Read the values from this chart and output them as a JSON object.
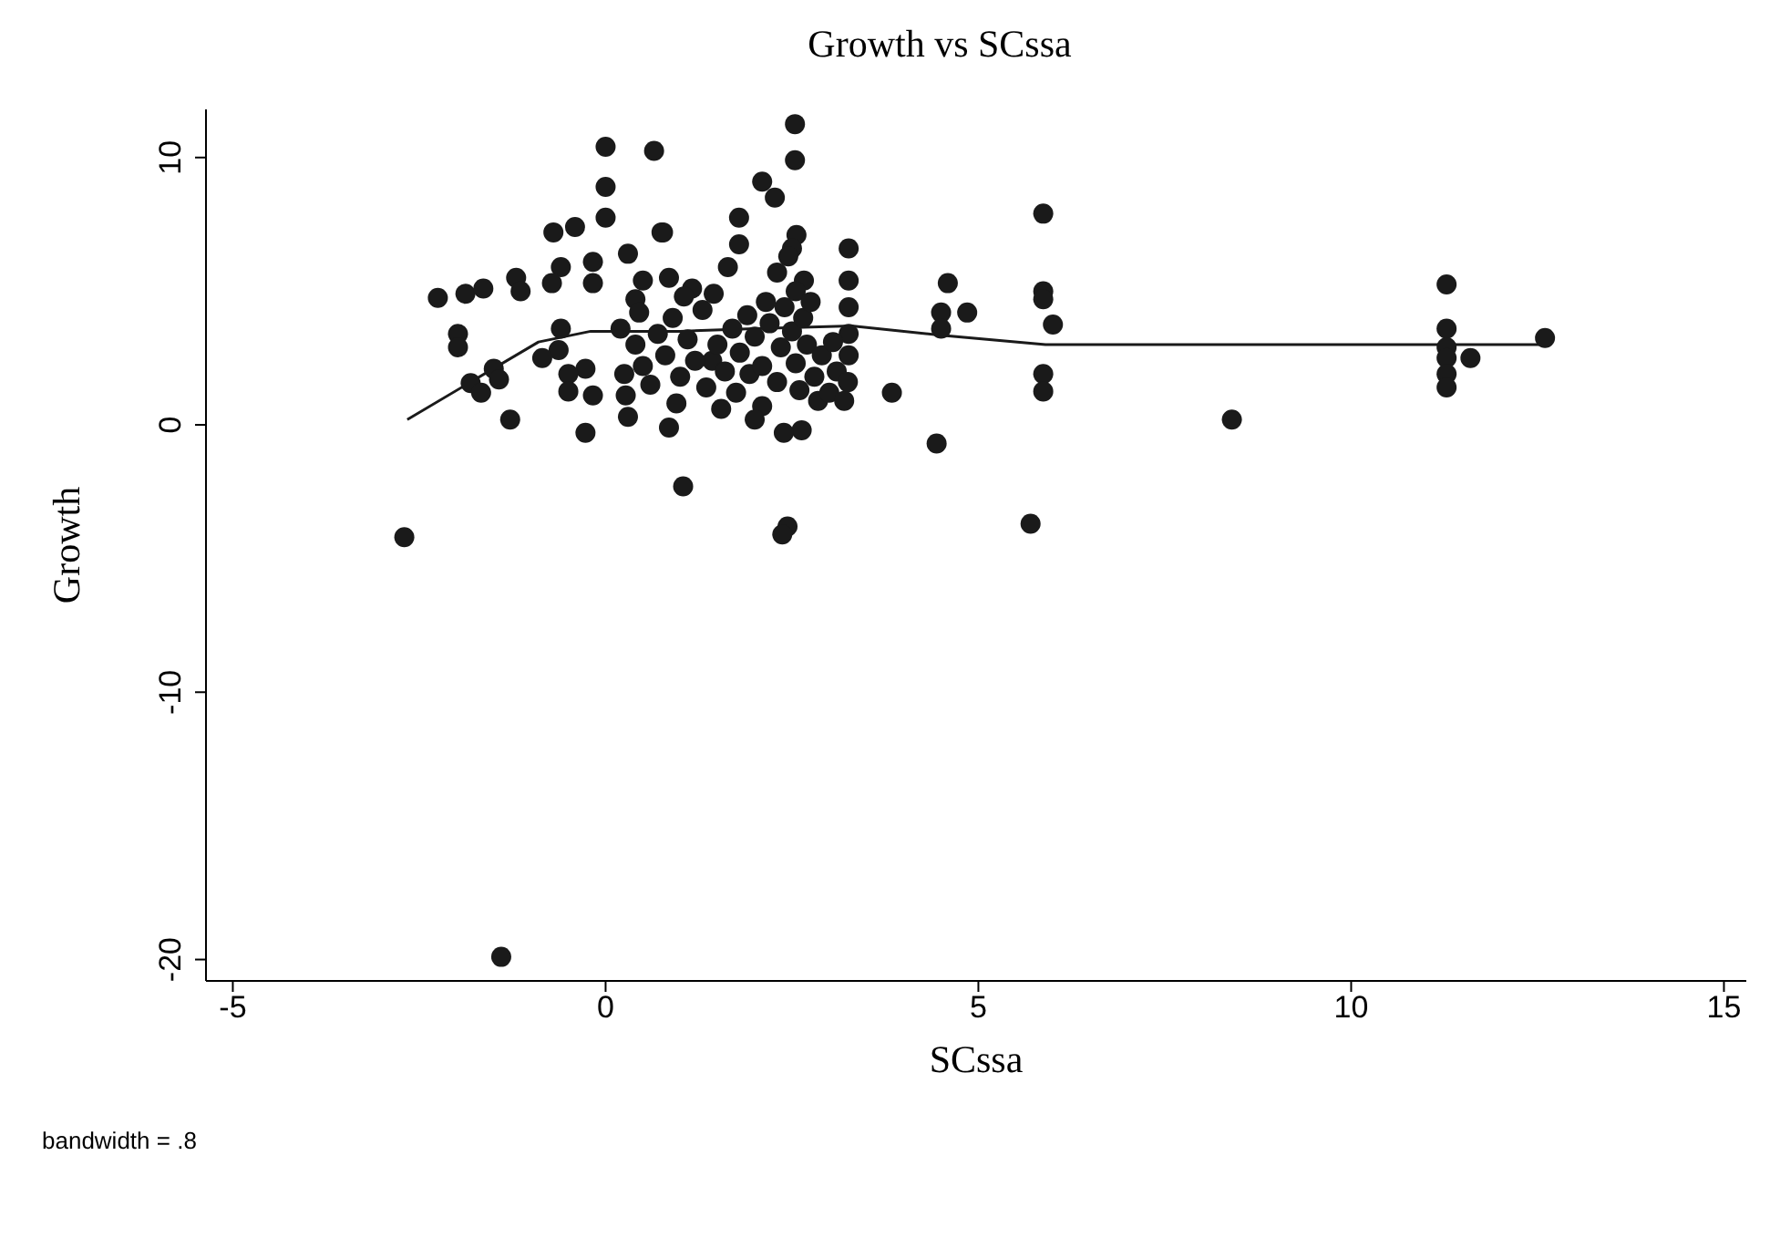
{
  "chart_data": {
    "type": "scatter",
    "title": "Growth vs SCssa",
    "xlabel": "SCssa",
    "ylabel": "Growth",
    "annotations": [
      "bandwidth = .8"
    ],
    "xlim": [
      -5.36,
      15.3
    ],
    "xticks": [
      -5,
      0,
      5,
      10,
      15
    ],
    "ylim": [
      -20.8,
      11.8
    ],
    "yticks": [
      -20,
      -10,
      0,
      10
    ],
    "marker": "circle",
    "series": [
      {
        "color": "#1a1a1a",
        "x": [
          -1.4,
          -2.7,
          5.7,
          8.4,
          5.87,
          4.59,
          4.5,
          4.85,
          4.5,
          5.87,
          5.87,
          6.0,
          5.87,
          5.87,
          4.44,
          11.28,
          11.28,
          11.28,
          11.28,
          11.28,
          11.28,
          11.6,
          12.6,
          2.54,
          0.65,
          2.54,
          2.1,
          2.27,
          1.79,
          0.77,
          2.56,
          2.5,
          1.79,
          1.64,
          0.85,
          1.16,
          2.66,
          3.26,
          3.26,
          3.26,
          3.26,
          1.43,
          1.93,
          0.85,
          2.63,
          2.39,
          3.84,
          1.04,
          2.44,
          2.37,
          0.0,
          0.0,
          0.0,
          -0.7,
          -0.41,
          0.3,
          0.75,
          -0.6,
          -0.72,
          -1.2,
          -1.14,
          -0.17,
          -0.17,
          -1.88,
          -1.64,
          -2.25,
          -1.98,
          -1.98,
          -0.6,
          -0.63,
          -0.85,
          -1.5,
          -1.43,
          -1.81,
          -1.67,
          -1.28,
          -0.27,
          -0.5,
          -0.5,
          -0.17,
          -0.27,
          0.27,
          0.2,
          0.4,
          0.5,
          0.4,
          0.5,
          0.6,
          0.7,
          0.8,
          0.9,
          1.0,
          1.1,
          1.2,
          1.3,
          1.35,
          1.5,
          1.6,
          1.7,
          1.75,
          1.8,
          1.9,
          2.0,
          2.1,
          2.1,
          2.2,
          2.3,
          2.35,
          2.4,
          2.5,
          2.55,
          2.6,
          2.65,
          2.7,
          2.8,
          2.85,
          2.9,
          3.0,
          3.05,
          3.1,
          3.2,
          3.25,
          3.26,
          2.0,
          1.55,
          0.95,
          0.3,
          0.25,
          0.45,
          1.05,
          1.45,
          2.15,
          2.55,
          2.75,
          2.3,
          2.45
        ],
        "values": [
          -19.9,
          -4.2,
          -3.7,
          0.2,
          7.9,
          5.3,
          4.2,
          4.2,
          3.6,
          5.0,
          4.7,
          3.75,
          1.9,
          1.25,
          -0.7,
          5.25,
          3.6,
          2.9,
          2.5,
          1.9,
          1.4,
          2.5,
          3.25,
          11.25,
          10.25,
          9.9,
          9.1,
          8.5,
          7.75,
          7.2,
          7.1,
          6.6,
          6.75,
          5.9,
          5.5,
          5.1,
          5.4,
          6.6,
          5.4,
          4.4,
          3.4,
          2.4,
          1.9,
          -0.1,
          -0.2,
          -0.3,
          1.2,
          -2.3,
          -3.8,
          -4.1,
          10.4,
          8.9,
          7.75,
          7.2,
          7.4,
          6.4,
          7.2,
          5.9,
          5.3,
          5.5,
          5.0,
          6.1,
          5.3,
          4.9,
          5.1,
          4.75,
          3.4,
          2.9,
          3.6,
          2.8,
          2.5,
          2.1,
          1.7,
          1.56,
          1.2,
          0.2,
          2.1,
          1.9,
          1.25,
          1.1,
          -0.3,
          1.1,
          3.6,
          4.7,
          5.4,
          3.0,
          2.2,
          1.5,
          3.4,
          2.6,
          4.0,
          1.8,
          3.2,
          2.4,
          4.3,
          1.4,
          3.0,
          2.0,
          3.6,
          1.2,
          2.7,
          4.1,
          3.3,
          2.2,
          0.7,
          3.8,
          1.6,
          2.9,
          4.4,
          3.5,
          2.3,
          1.3,
          4.0,
          3.0,
          1.8,
          0.9,
          2.6,
          1.2,
          3.1,
          2.0,
          0.9,
          1.6,
          2.6,
          0.2,
          0.6,
          0.8,
          0.3,
          1.9,
          4.2,
          4.8,
          4.9,
          4.6,
          5.0,
          4.6,
          5.7,
          6.3
        ]
      },
      {
        "type": "line",
        "color": "#1a1a1a",
        "marker": "none",
        "line_style": "solid",
        "x": [
          -2.66,
          -0.9,
          -0.2,
          1,
          2,
          3.3,
          4.5,
          5.9,
          8,
          10,
          11.3,
          12.6
        ],
        "values": [
          0.2,
          3.1,
          3.5,
          3.5,
          3.6,
          3.7,
          3.35,
          3.0,
          3.0,
          3.0,
          3.0,
          3.0
        ]
      }
    ]
  }
}
